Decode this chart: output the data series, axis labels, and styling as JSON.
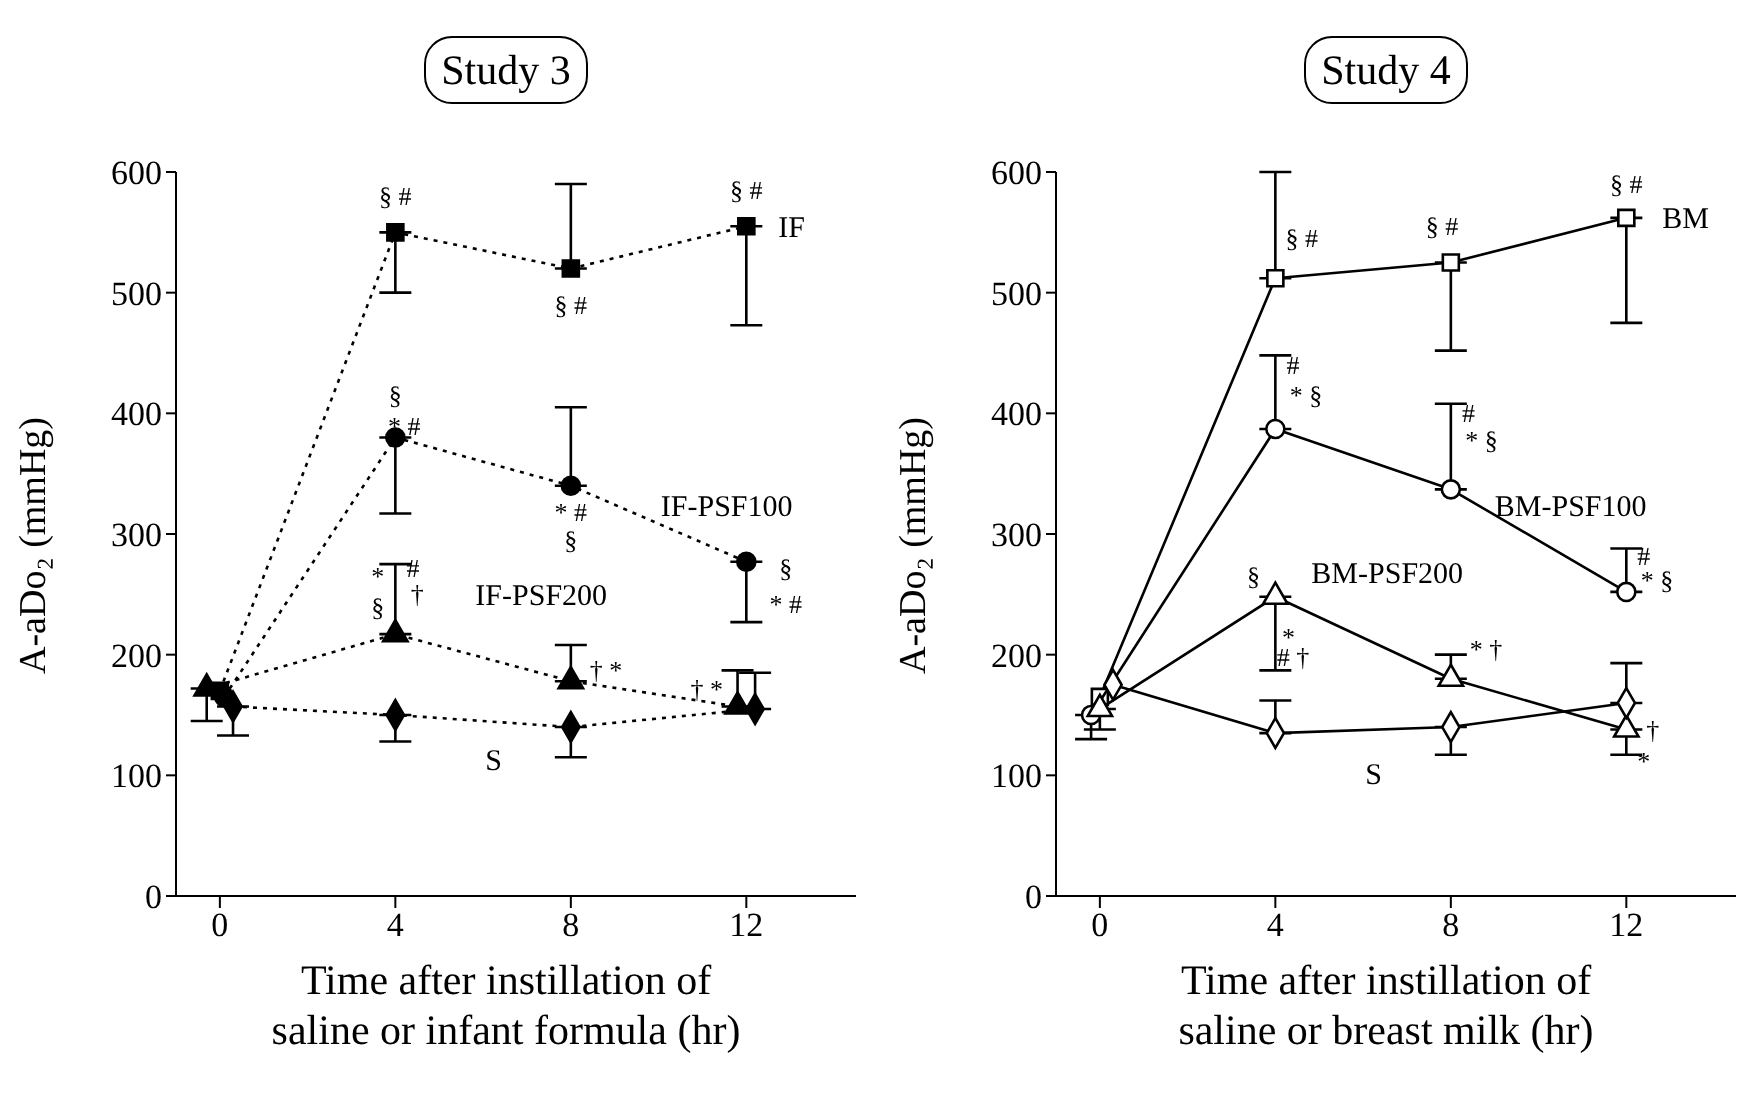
{
  "chart_data": [
    {
      "type": "line",
      "title": "Study 3",
      "xlabel": "Time after instillation of\nsaline or infant formula (hr)",
      "ylabel": "A-aDo₂ (mmHg)",
      "xlim": [
        -1,
        14.5
      ],
      "xticks": [
        0,
        4,
        8,
        12
      ],
      "ylim": [
        0,
        600
      ],
      "yticks": [
        0,
        100,
        200,
        300,
        400,
        500,
        600
      ],
      "line_style": "dotted",
      "series": [
        {
          "name": "IF",
          "color": "#000000",
          "marker": "square",
          "x": [
            0,
            4,
            8,
            12
          ],
          "values": [
            170,
            550,
            520,
            555
          ],
          "errors": [
            null,
            [
              500,
              550
            ],
            [
              520,
              590
            ],
            [
              473,
              555
            ]
          ]
        },
        {
          "name": "IF-PSF100",
          "color": "#000000",
          "marker": "circle",
          "x": [
            0.1,
            4,
            8,
            12
          ],
          "values": [
            165,
            380,
            340,
            277
          ],
          "errors": [
            null,
            [
              317,
              380
            ],
            [
              340,
              405
            ],
            [
              227,
              277
            ]
          ]
        },
        {
          "name": "IF-PSF200",
          "color": "#000000",
          "marker": "triangle",
          "x": [
            -0.3,
            4,
            8,
            11.8
          ],
          "values": [
            172,
            217,
            178,
            157
          ],
          "errors": [
            [
              145,
              172
            ],
            [
              217,
              275
            ],
            [
              178,
              208
            ],
            [
              157,
              187
            ]
          ]
        },
        {
          "name": "S",
          "color": "#000000",
          "marker": "diamond",
          "x": [
            0.3,
            4,
            8,
            12.2
          ],
          "values": [
            157,
            150,
            140,
            155
          ],
          "errors": [
            [
              133,
              157
            ],
            [
              128,
              150
            ],
            [
              115,
              140
            ],
            [
              155,
              185
            ]
          ]
        }
      ],
      "annotations": [
        "§ #",
        "§ #",
        "§ #",
        "§",
        "* #",
        "* #",
        "§",
        "§",
        "* #",
        "*",
        "#",
        "§",
        "†",
        "† *",
        "† *"
      ]
    },
    {
      "type": "line",
      "title": "Study 4",
      "xlabel": "Time after instillation of\nsaline or breast milk (hr)",
      "ylabel": "A-aDo₂ (mmHg)",
      "x": [
        0,
        4,
        8,
        12
      ],
      "xlim": [
        -1,
        14.5
      ],
      "xticks": [
        0,
        4,
        8,
        12
      ],
      "ylim": [
        0,
        600
      ],
      "yticks": [
        0,
        100,
        200,
        300,
        400,
        500,
        600
      ],
      "line_style": "solid",
      "series": [
        {
          "name": "BM",
          "color": "#000000",
          "marker": "square",
          "values": [
            165,
            512,
            525,
            562
          ],
          "errors": [
            null,
            [
              512,
              600
            ],
            [
              452,
              525
            ],
            [
              475,
              562
            ]
          ]
        },
        {
          "name": "BM-PSF100",
          "color": "#000000",
          "marker": "circle",
          "x": [
            -0.2,
            4,
            8,
            12
          ],
          "values": [
            150,
            387,
            337,
            252
          ],
          "errors": [
            [
              130,
              150
            ],
            [
              387,
              448
            ],
            [
              337,
              408
            ],
            [
              252,
              288
            ]
          ]
        },
        {
          "name": "BM-PSF200",
          "color": "#000000",
          "marker": "triangle",
          "values": [
            155,
            248,
            180,
            138
          ],
          "errors": [
            [
              138,
              155
            ],
            [
              187,
              248
            ],
            [
              180,
              200
            ],
            [
              117,
              138
            ]
          ]
        },
        {
          "name": "S",
          "color": "#000000",
          "marker": "diamond",
          "x": [
            0.3,
            4,
            8,
            12
          ],
          "values": [
            175,
            135,
            140,
            160
          ],
          "errors": [
            null,
            [
              135,
              162
            ],
            [
              117,
              140
            ],
            [
              160,
              193
            ]
          ]
        }
      ],
      "annotations": [
        "§ #",
        "§ #",
        "§ #",
        "#",
        "* §",
        "#",
        "* §",
        "#",
        "* §",
        "§",
        "*",
        "# †",
        "* †",
        "†",
        "*"
      ]
    }
  ]
}
